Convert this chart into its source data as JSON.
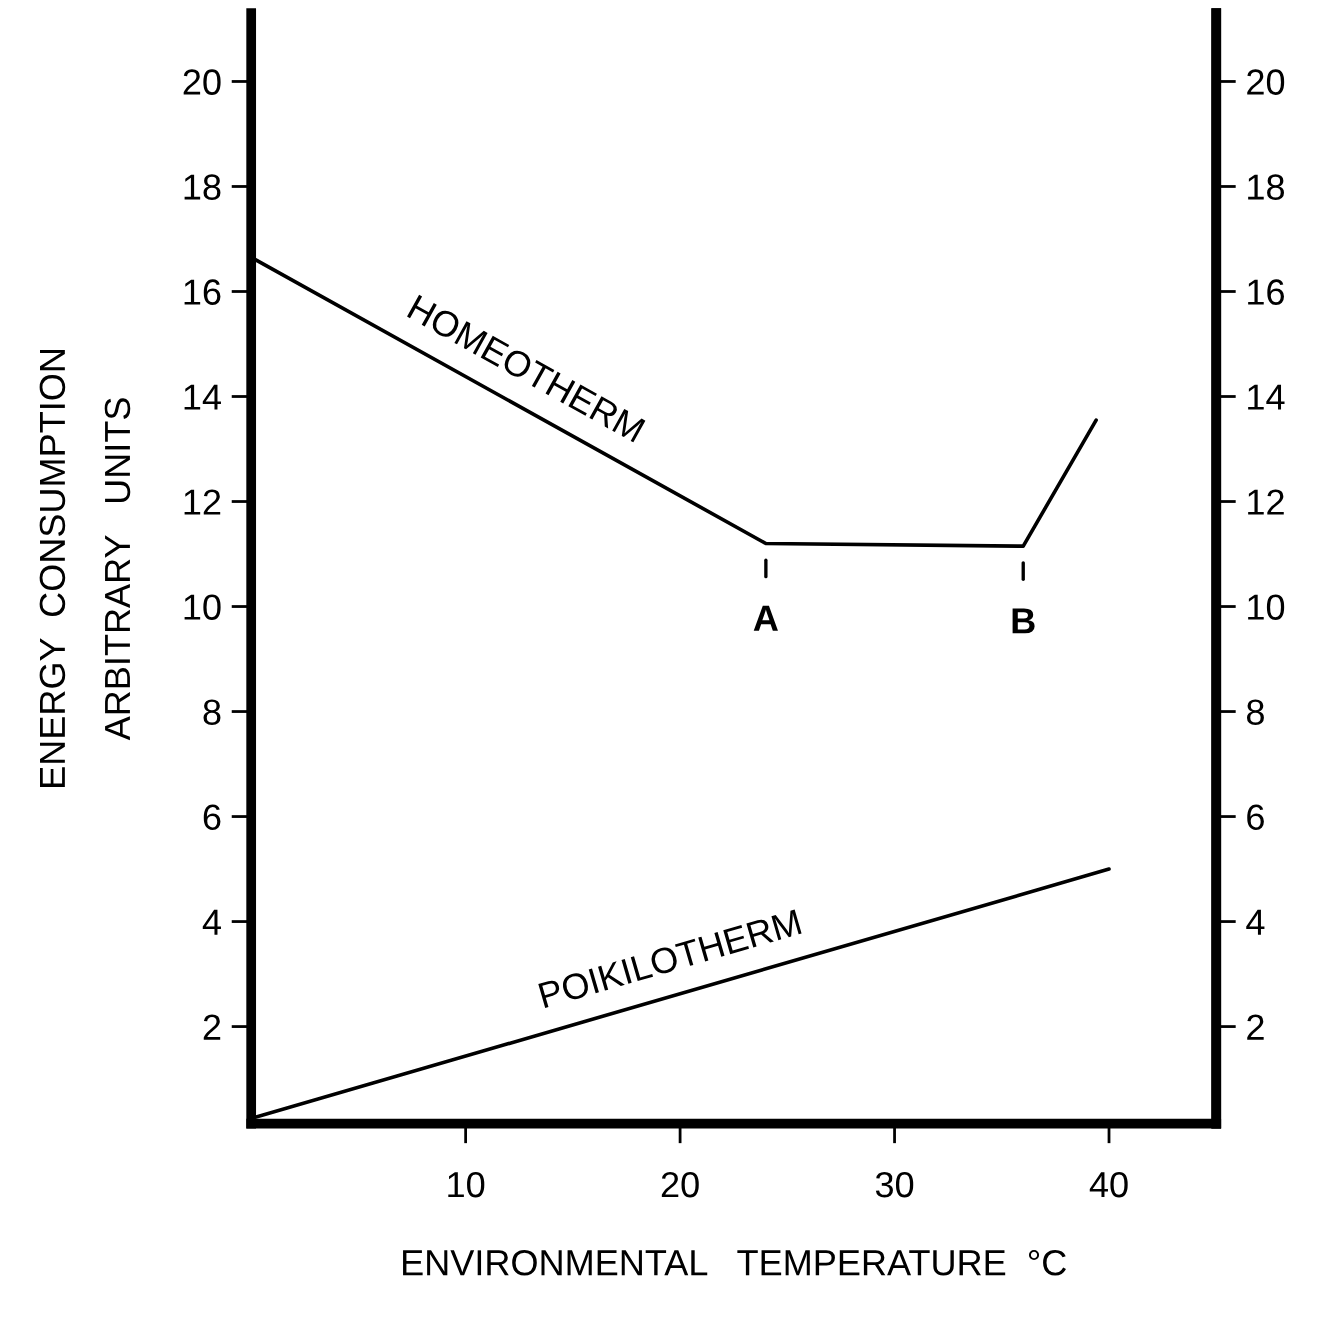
{
  "chart_data": {
    "type": "line",
    "xlabel": "ENVIRONMENTAL   TEMPERATURE  °C",
    "ylabel": "ENERGY  CONSUMPTION\nARBITRARY   UNITS",
    "series": [
      {
        "name": "HOMEOTHERM",
        "color": "#000000",
        "x": [
          0,
          24,
          36,
          39.4
        ],
        "values": [
          16.65,
          11.2,
          11.15,
          13.55
        ]
      },
      {
        "name": "POIKILOTHERM",
        "color": "#000000",
        "x": [
          0,
          40
        ],
        "values": [
          0.25,
          5.0
        ]
      }
    ],
    "annotations": [
      {
        "text": "A",
        "x": 24,
        "y": 11.2
      },
      {
        "text": "B",
        "x": 36,
        "y": 11.15
      }
    ],
    "xlim": [
      0,
      45
    ],
    "xticks": [
      10,
      20,
      30,
      40
    ],
    "ylim": [
      0.15,
      21.3
    ],
    "yticks": [
      2,
      4,
      6,
      8,
      10,
      12,
      14,
      16,
      18,
      20
    ],
    "y2lim": [
      0.15,
      21.3
    ],
    "y2ticks": [
      2,
      4,
      6,
      8,
      10,
      12,
      14,
      16,
      18,
      20
    ],
    "grid": false,
    "legend": false,
    "marker": "none",
    "line_style": "solid"
  }
}
